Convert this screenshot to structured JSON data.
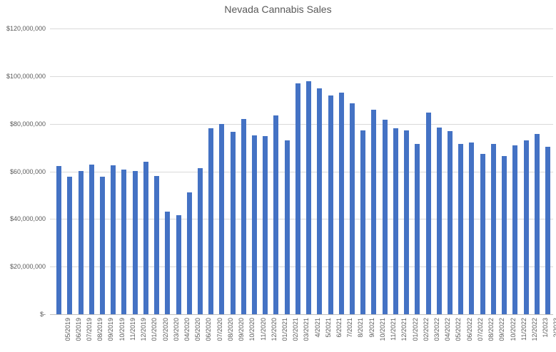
{
  "colors": {
    "bar": "#4472C4",
    "gridline": "#D9D9D9",
    "axis_line": "#BFBFBF",
    "axis_text": "#595959",
    "title_text": "#595959",
    "background": "#FFFFFF"
  },
  "chart_data": {
    "type": "bar",
    "title": "Nevada Cannabis Sales",
    "xlabel": "",
    "ylabel": "",
    "legend": "none",
    "grid": true,
    "ylim": [
      0,
      120000000
    ],
    "y_ticks": [
      {
        "label": "$120,000,000",
        "value": 120000000
      },
      {
        "label": "$100,000,000",
        "value": 100000000
      },
      {
        "label": "$80,000,000",
        "value": 80000000
      },
      {
        "label": "$60,000,000",
        "value": 60000000
      },
      {
        "label": "$40,000,000",
        "value": 40000000
      },
      {
        "label": "$20,000,000",
        "value": 20000000
      },
      {
        "label": "$-",
        "value": 0
      }
    ],
    "categories": [
      "05/2019",
      "06/2019",
      "07/2019",
      "08/2019",
      "09/2019",
      "10/2019",
      "11/2019",
      "12/2019",
      "01/2020",
      "02/2020",
      "03/2020",
      "04/2020",
      "05/2020",
      "06/2020",
      "07/2020",
      "08/2020",
      "09/2020",
      "10/2020",
      "11/2020",
      "12/2020",
      "01/2021",
      "02/2021",
      "03/2021",
      "4/2021",
      "5/2021",
      "6/2021",
      "7/2021",
      "8/2021",
      "9/2021",
      "10/2021",
      "11/2021",
      "12/2021",
      "01/2022",
      "02/2022",
      "03/2022",
      "04/2022",
      "05/2022",
      "06/2022",
      "07/2022",
      "08/2022",
      "09/2022",
      "10/2022",
      "11/2022",
      "12/2022",
      "1/2023",
      "2/2023"
    ],
    "values": [
      62200000,
      57800000,
      60100000,
      62800000,
      57800000,
      62700000,
      60800000,
      60100000,
      64000000,
      58100000,
      43200000,
      41700000,
      51300000,
      61300000,
      78000000,
      79800000,
      76700000,
      82000000,
      75000000,
      74800000,
      83500000,
      73000000,
      97000000,
      97800000,
      95000000,
      92000000,
      93100000,
      88600000,
      77300000,
      86000000,
      81800000,
      78000000,
      77300000,
      71600000,
      84800000,
      78300000,
      77000000,
      71600000,
      72000000,
      67300000,
      71600000,
      66300000,
      70800000,
      73100000,
      75800000,
      70300000
    ]
  }
}
